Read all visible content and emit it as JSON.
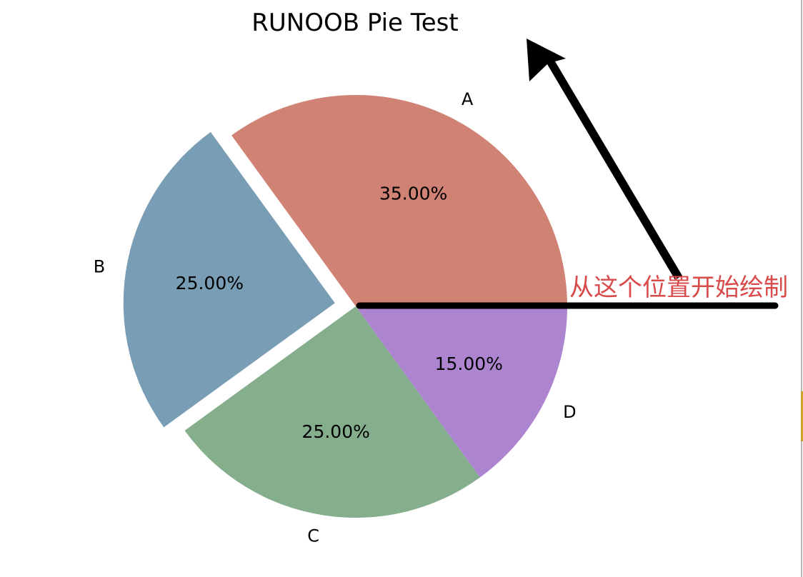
{
  "chart_data": {
    "type": "pie",
    "title": "RUNOOB Pie Test",
    "categories": [
      "A",
      "B",
      "C",
      "D"
    ],
    "values": [
      35,
      25,
      25,
      15
    ],
    "percent_labels": [
      "35.00%",
      "25.00%",
      "25.00%",
      "15.00%"
    ],
    "colors": [
      "#d08275",
      "#789db5",
      "#85ae8d",
      "#ad84cf"
    ],
    "exploded": [
      "B"
    ],
    "start_angle_deg": 0,
    "direction": "counterclockwise",
    "annotation": {
      "text": "从这个位置开始绘制",
      "color": "#d94a4a"
    }
  },
  "frame": {
    "edge_accent_color": "#c9a227"
  }
}
